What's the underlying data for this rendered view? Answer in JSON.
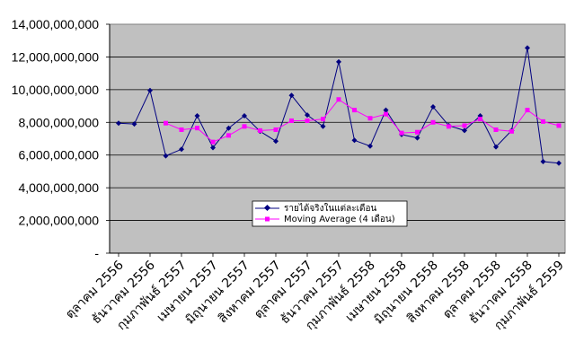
{
  "chart_data": {
    "type": "line",
    "title": "",
    "xlabel": "",
    "ylabel": "",
    "ylim": [
      0,
      14000000000
    ],
    "yticks": [
      0,
      2000000000,
      4000000000,
      6000000000,
      8000000000,
      10000000000,
      12000000000,
      14000000000
    ],
    "ytick_labels": [
      "-",
      "2,000,000,000",
      "4,000,000,000",
      "6,000,000,000",
      "8,000,000,000",
      "10,000,000,000",
      "12,000,000,000",
      "14,000,000,000"
    ],
    "grid": "horizontal",
    "legend": "center",
    "plot_background": "#c0c0c0",
    "x_tick_labels": [
      {
        "index": 0,
        "label": "ตุลาคม 2556"
      },
      {
        "index": 2,
        "label": "ธันวาคม 2556"
      },
      {
        "index": 4,
        "label": "กุมภาพันธ์ 2557"
      },
      {
        "index": 6,
        "label": "เมษายน 2557"
      },
      {
        "index": 8,
        "label": "มิถุนายน 2557"
      },
      {
        "index": 10,
        "label": "สิงหาคม 2557"
      },
      {
        "index": 12,
        "label": "ตุลาคม 2557"
      },
      {
        "index": 14,
        "label": "ธันวาคม 2557"
      },
      {
        "index": 16,
        "label": "กุมภาพันธ์ 2558"
      },
      {
        "index": 18,
        "label": "เมษายน 2558"
      },
      {
        "index": 20,
        "label": "มิถุนายน 2558"
      },
      {
        "index": 22,
        "label": "สิงหาคม 2558"
      },
      {
        "index": 24,
        "label": "ตุลาคม 2558"
      },
      {
        "index": 26,
        "label": "ธันวาคม 2558"
      },
      {
        "index": 28,
        "label": "กุมภาพันธ์ 2559"
      }
    ],
    "series": [
      {
        "name": "รายได้จริงในแต่ละเดือน",
        "color": "#000080",
        "marker": "diamond",
        "values": [
          7950000000,
          7900000000,
          9950000000,
          5950000000,
          6350000000,
          8400000000,
          6450000000,
          7650000000,
          8400000000,
          7450000000,
          6850000000,
          9650000000,
          8450000000,
          7750000000,
          11700000000,
          6900000000,
          6550000000,
          8750000000,
          7250000000,
          7050000000,
          8950000000,
          7800000000,
          7500000000,
          8400000000,
          6500000000,
          7500000000,
          12550000000,
          5600000000,
          5500000000
        ]
      },
      {
        "name": "Moving Average (4 เดือน)",
        "color": "#ff00ff",
        "marker": "square",
        "values": [
          null,
          null,
          null,
          7950000000,
          7550000000,
          7650000000,
          6800000000,
          7200000000,
          7750000000,
          7500000000,
          7550000000,
          8100000000,
          8100000000,
          8200000000,
          9400000000,
          8750000000,
          8250000000,
          8500000000,
          7350000000,
          7400000000,
          8000000000,
          7750000000,
          7800000000,
          8200000000,
          7550000000,
          7450000000,
          8750000000,
          8050000000,
          7800000000
        ]
      }
    ]
  }
}
